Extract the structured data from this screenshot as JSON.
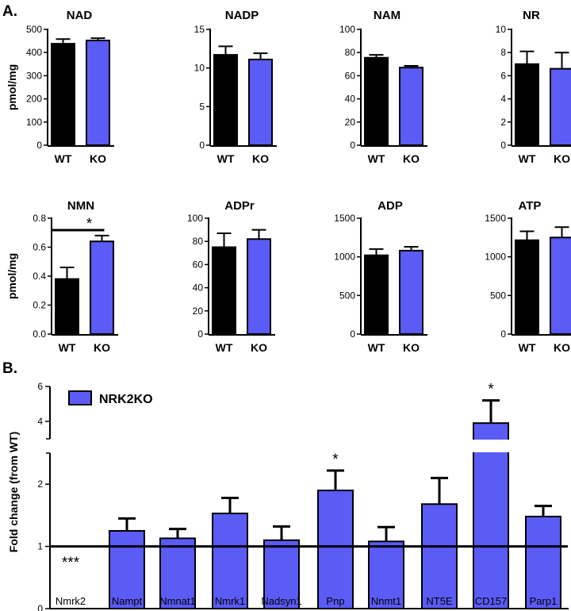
{
  "colors": {
    "wt": "#000000",
    "ko": "#5b5bf6",
    "axis": "#000000"
  },
  "panels": {
    "a": "A.",
    "b": "B."
  },
  "chart_data": [
    {
      "type": "bar",
      "title": "NAD",
      "categories": [
        "WT",
        "KO"
      ],
      "values": [
        438,
        452
      ],
      "errors": [
        20,
        10
      ],
      "ylabel": "pmol/mg",
      "ylim": [
        0,
        500
      ],
      "yticks": [
        0,
        100,
        200,
        300,
        400,
        500
      ]
    },
    {
      "type": "bar",
      "title": "NADP",
      "categories": [
        "WT",
        "KO"
      ],
      "values": [
        11.7,
        11.1
      ],
      "errors": [
        1.1,
        0.8
      ],
      "ylim": [
        0,
        15
      ],
      "yticks": [
        0,
        5,
        10,
        15
      ]
    },
    {
      "type": "bar",
      "title": "NAM",
      "categories": [
        "WT",
        "KO"
      ],
      "values": [
        75.5,
        67
      ],
      "errors": [
        2.5,
        1.5
      ],
      "ylim": [
        0,
        100
      ],
      "yticks": [
        0,
        20,
        40,
        60,
        80,
        100
      ]
    },
    {
      "type": "bar",
      "title": "NR",
      "categories": [
        "WT",
        "KO"
      ],
      "values": [
        7.0,
        6.6
      ],
      "errors": [
        1.1,
        1.4
      ],
      "ylim": [
        0,
        10
      ],
      "yticks": [
        0,
        2,
        4,
        6,
        8,
        10
      ]
    },
    {
      "type": "bar",
      "title": "NMN",
      "categories": [
        "WT",
        "KO"
      ],
      "values": [
        0.38,
        0.64
      ],
      "errors": [
        0.08,
        0.04
      ],
      "ylabel": "pmol/mg",
      "ylim": [
        0,
        0.8
      ],
      "yticks": [
        0.0,
        0.2,
        0.4,
        0.6,
        0.8
      ],
      "decimals": 1,
      "significance": "*"
    },
    {
      "type": "bar",
      "title": "ADPr",
      "categories": [
        "WT",
        "KO"
      ],
      "values": [
        75,
        82
      ],
      "errors": [
        12,
        8
      ],
      "ylim": [
        0,
        100
      ],
      "yticks": [
        0,
        20,
        40,
        60,
        80,
        100
      ]
    },
    {
      "type": "bar",
      "title": "ADP",
      "categories": [
        "WT",
        "KO"
      ],
      "values": [
        1020,
        1080
      ],
      "errors": [
        80,
        50
      ],
      "ylim": [
        0,
        1500
      ],
      "yticks": [
        0,
        500,
        1000,
        1500
      ]
    },
    {
      "type": "bar",
      "title": "ATP",
      "categories": [
        "WT",
        "KO"
      ],
      "values": [
        1215,
        1250
      ],
      "errors": [
        115,
        135
      ],
      "ylim": [
        0,
        1500
      ],
      "yticks": [
        0,
        500,
        1000,
        1500
      ]
    },
    {
      "type": "bar",
      "ylabel": "Fold change (from WT)",
      "legend": [
        "NRK2KO"
      ],
      "categories": [
        "Nmrk2",
        "Nampt",
        "Nmnat1",
        "Nmrk1",
        "Nadsyn1",
        "Pnp",
        "Nnmt1",
        "NT5E",
        "CD157",
        "Parp1"
      ],
      "values": [
        0,
        1.25,
        1.13,
        1.53,
        1.1,
        1.9,
        1.08,
        1.68,
        3.9,
        1.48
      ],
      "errors": [
        0,
        0.2,
        0.15,
        0.25,
        0.22,
        0.32,
        0.23,
        0.42,
        1.3,
        0.17
      ],
      "annotations": [
        "***",
        "",
        "",
        "",
        "",
        "*",
        "",
        "",
        "*",
        ""
      ],
      "reference_line": 1,
      "ylim_lower": [
        0,
        2.5
      ],
      "ylim_upper": [
        3,
        6
      ],
      "yticks_lower": [
        0,
        1,
        2
      ],
      "yticks_upper": [
        4,
        6
      ]
    }
  ]
}
